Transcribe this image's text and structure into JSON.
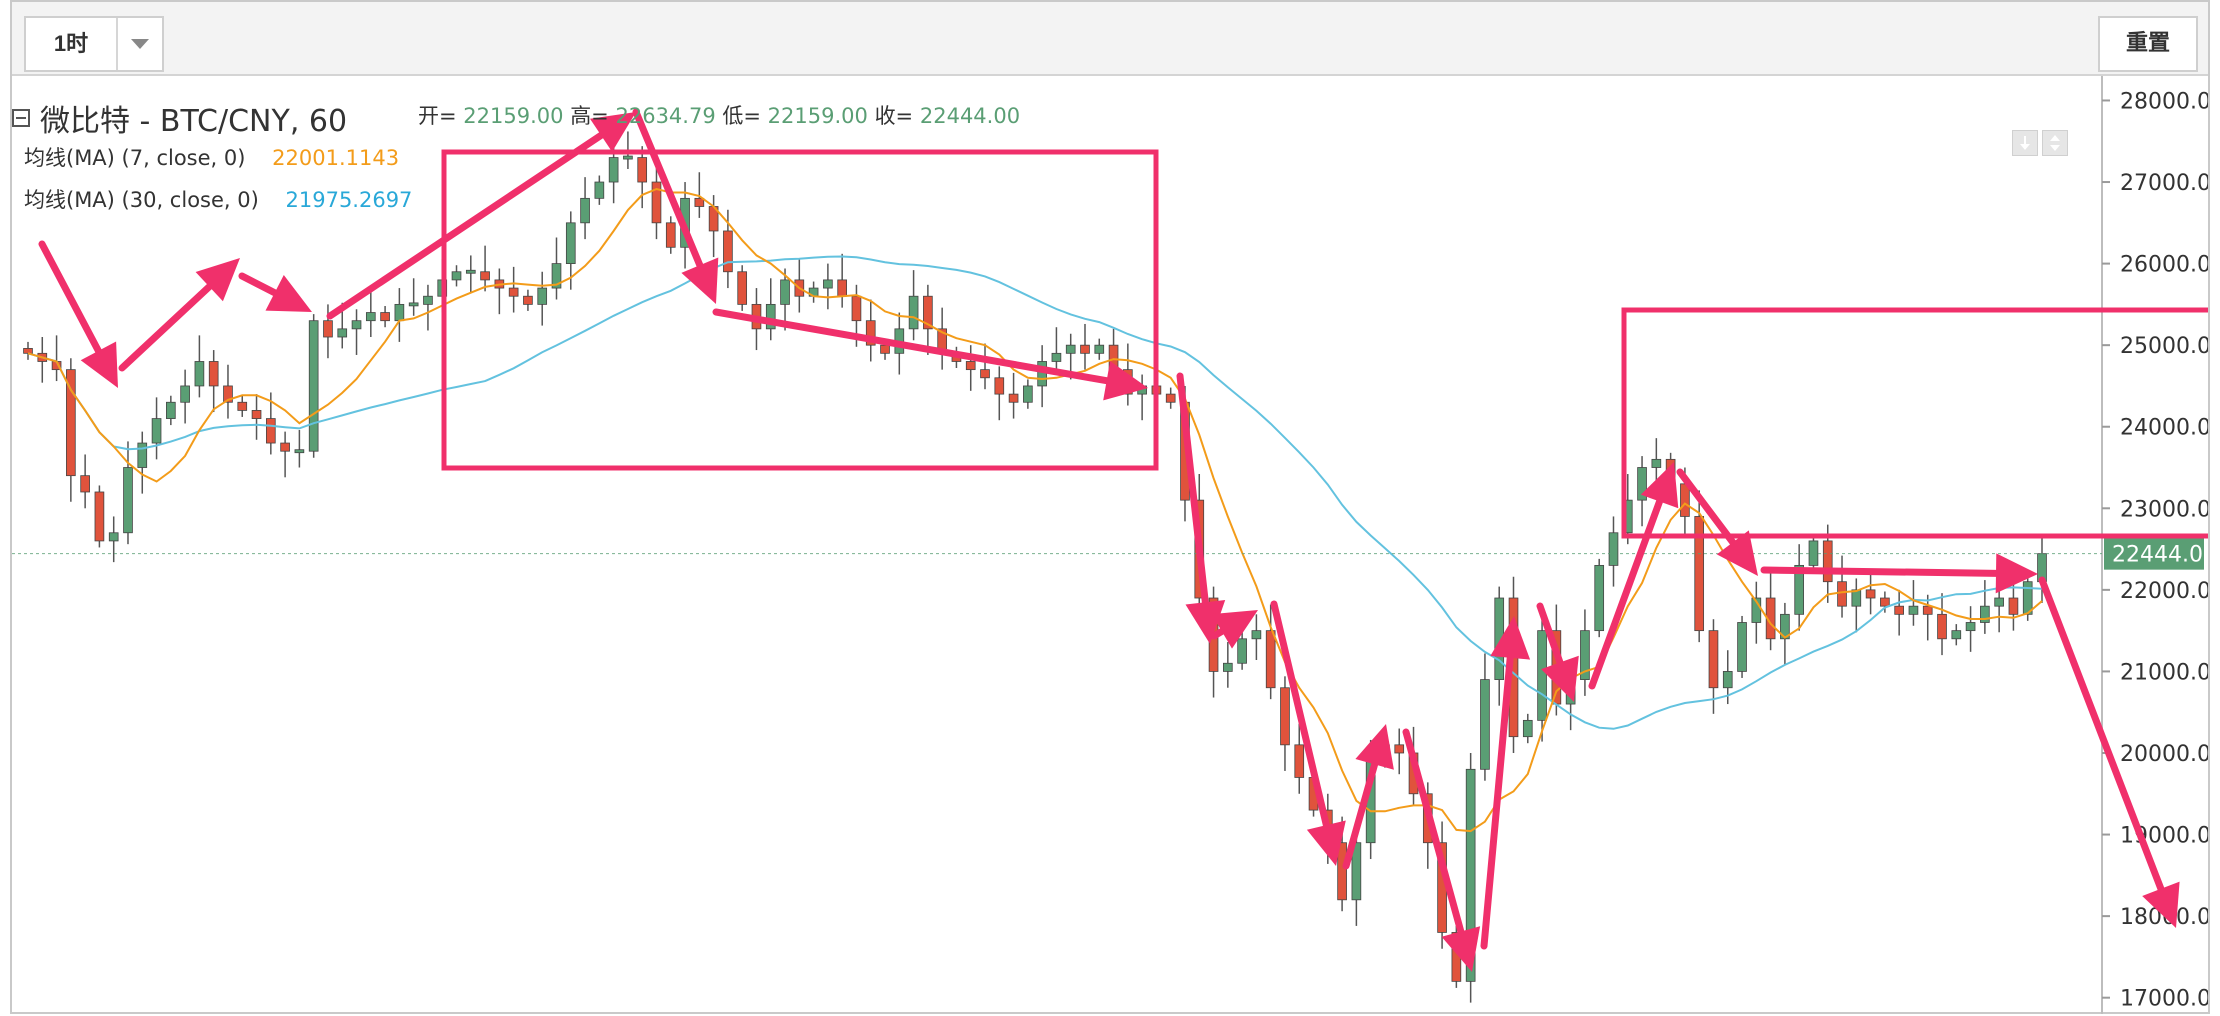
{
  "toolbar": {
    "interval_label": "1时",
    "reset_label": "重置"
  },
  "legend": {
    "title": "微比特 - BTC/CNY, 60",
    "open_label": "开=",
    "open": "22159.00",
    "high_label": "高=",
    "high": "22634.79",
    "low_label": "低=",
    "low": "22159.00",
    "close_label": "收=",
    "close": "22444.00",
    "ma7_label": "均线(MA) (7, close, 0)",
    "ma7_value": "22001.1143",
    "ma30_label": "均线(MA) (30, close, 0)",
    "ma30_value": "21975.2697"
  },
  "colors": {
    "up": "#5a9e74",
    "down": "#e0533c",
    "ma7": "#f39c1a",
    "ma30": "#63c2df",
    "annotation": "#f0306b",
    "price_tag": "#5a9e74"
  },
  "chart_data": {
    "type": "candlestick",
    "ylim": [
      16800,
      28300
    ],
    "yticks": [
      "28000.00",
      "27000.00",
      "26000.00",
      "25000.00",
      "24000.00",
      "23000.00",
      "22000.00",
      "21000.00",
      "20000.00",
      "19000.00",
      "18000.00",
      "17000.00"
    ],
    "current_price": "22444.00",
    "close_series": [
      24900,
      24800,
      24700,
      23400,
      23200,
      22600,
      22700,
      23500,
      23800,
      24100,
      24300,
      24500,
      24800,
      24500,
      24300,
      24200,
      24100,
      23800,
      23700,
      23700,
      25300,
      25100,
      25200,
      25300,
      25400,
      25300,
      25500,
      25500,
      25600,
      25800,
      25900,
      25900,
      25800,
      25700,
      25600,
      25500,
      25700,
      26000,
      26500,
      26800,
      27000,
      27300,
      27300,
      27000,
      26500,
      26200,
      26800,
      26700,
      26400,
      25900,
      25500,
      25200,
      25500,
      25800,
      25600,
      25700,
      25800,
      25600,
      25300,
      25000,
      24900,
      25200,
      25600,
      25200,
      24900,
      24800,
      24700,
      24600,
      24400,
      24300,
      24500,
      24800,
      24900,
      25000,
      24900,
      25000,
      24700,
      24400,
      24500,
      24400,
      24300,
      23100,
      21900,
      21000,
      21100,
      21400,
      21500,
      20800,
      20100,
      19700,
      19300,
      18900,
      18200,
      18900,
      19900,
      20100,
      20000,
      19500,
      18900,
      17800,
      17200,
      19800,
      20900,
      21900,
      20200,
      20400,
      21500,
      20600,
      20900,
      21500,
      22300,
      22700,
      23100,
      23500,
      23600,
      23300,
      22900,
      21500,
      20800,
      21000,
      21600,
      21900,
      21400,
      21700,
      22300,
      22600,
      22100,
      21800,
      22000,
      21900,
      21800,
      21700,
      21800,
      21700,
      21400,
      21500,
      21600,
      21800,
      21900,
      21700,
      22100,
      22444
    ]
  }
}
